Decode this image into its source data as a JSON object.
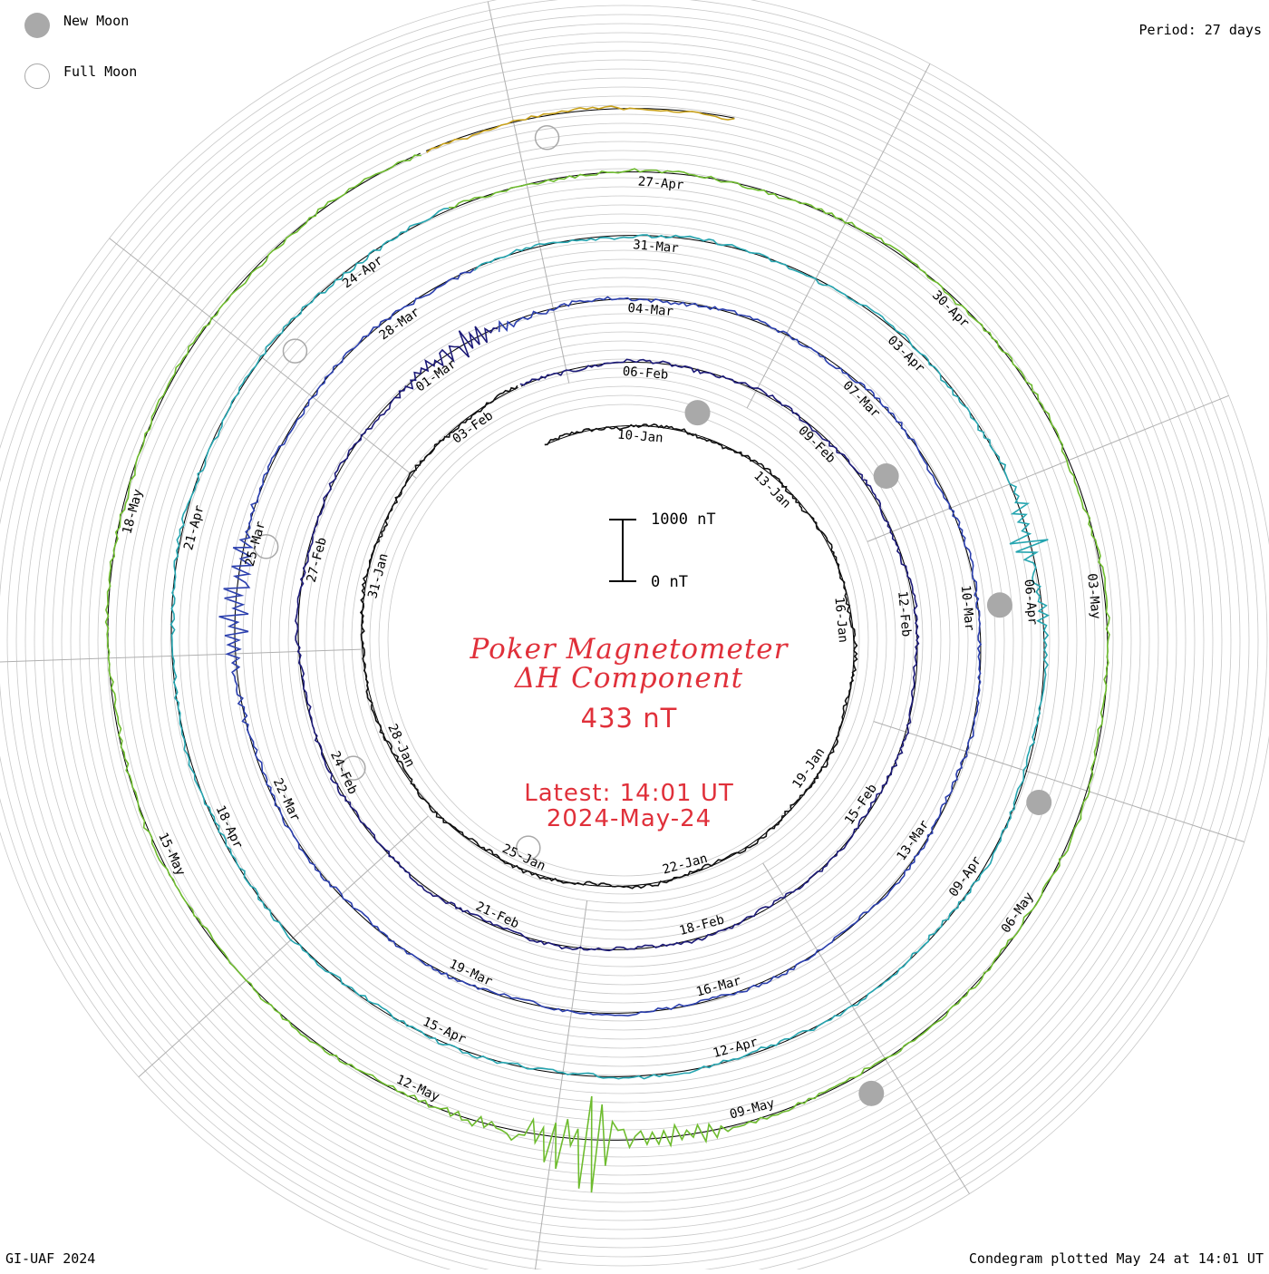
{
  "legend": {
    "new_moon_label": "New Moon",
    "full_moon_label": "Full Moon",
    "new_moon_color": "#a9a9a9",
    "full_moon_color": "#a9a9a9"
  },
  "period_label": "Period: 27 days",
  "footer": {
    "left": "GI-UAF 2024",
    "right": "Condegram plotted May 24 at 14:01 UT"
  },
  "center": {
    "title_line1": "Poker Magnetometer",
    "title_line2": "ΔH Component",
    "value": "433 nT",
    "latest_line1": "Latest: 14:01 UT",
    "latest_line2": "2024-May-24",
    "text_color": "#e0303a"
  },
  "scale_bar": {
    "top_label": "1000 nT",
    "bottom_label": "0 nT"
  },
  "chart_data": {
    "type": "line",
    "subtype": "condegram spiral (polar)",
    "period_days": 27,
    "unit": "nT",
    "current_value_nT": 433,
    "rotations": [
      {
        "index": 0,
        "color": "#111111",
        "date_labels": [
          "10-Jan"
        ]
      },
      {
        "index": 1,
        "color": "#1c1a78",
        "date_labels": [
          "13-Jan",
          "16-Jan",
          "19-Jan",
          "22-Jan",
          "25-Jan",
          "28-Jan",
          "31-Jan",
          "03-Feb"
        ]
      },
      {
        "index": 2,
        "color": "#2b3fae",
        "date_labels": [
          "06-Feb",
          "09-Feb",
          "12-Feb",
          "15-Feb",
          "18-Feb",
          "21-Feb",
          "24-Feb",
          "27-Feb",
          "01-Mar"
        ]
      },
      {
        "index": 3,
        "color": "#25a5b0",
        "date_labels": [
          "04-Mar",
          "07-Mar",
          "10-Mar",
          "13-Mar",
          "16-Mar",
          "19-Mar",
          "22-Mar",
          "25-Mar",
          "28-Mar"
        ]
      },
      {
        "index": 4,
        "color": "#6ebc2e",
        "date_labels": [
          "31-Mar",
          "03-Apr",
          "06-Apr",
          "09-Apr",
          "12-Apr",
          "15-Apr",
          "18-Apr",
          "21-Apr",
          "24-Apr"
        ]
      },
      {
        "index": 5,
        "color": "#c9a21c",
        "date_labels": [
          "27-Apr",
          "30-Apr",
          "03-May",
          "06-May",
          "09-May",
          "12-May",
          "15-May",
          "18-May"
        ]
      },
      {
        "index": 6,
        "color": "#c4280f",
        "date_labels": []
      }
    ],
    "new_moons": [
      "11-Jan",
      "10-Feb",
      "10-Mar",
      "08-Apr",
      "08-May"
    ],
    "full_moons": [
      "25-Jan",
      "24-Feb",
      "25-Mar",
      "23-Apr",
      "23-May"
    ],
    "disturbance_events": [
      {
        "date": "10-May",
        "approx_peak_nT": 750,
        "note": "large storm, strong oscillations"
      },
      {
        "date": "24-Mar",
        "approx_peak_nT": 350
      },
      {
        "date": "01-Mar",
        "approx_peak_nT": 300
      },
      {
        "date": "05-Apr",
        "approx_peak_nT": 250
      }
    ]
  }
}
